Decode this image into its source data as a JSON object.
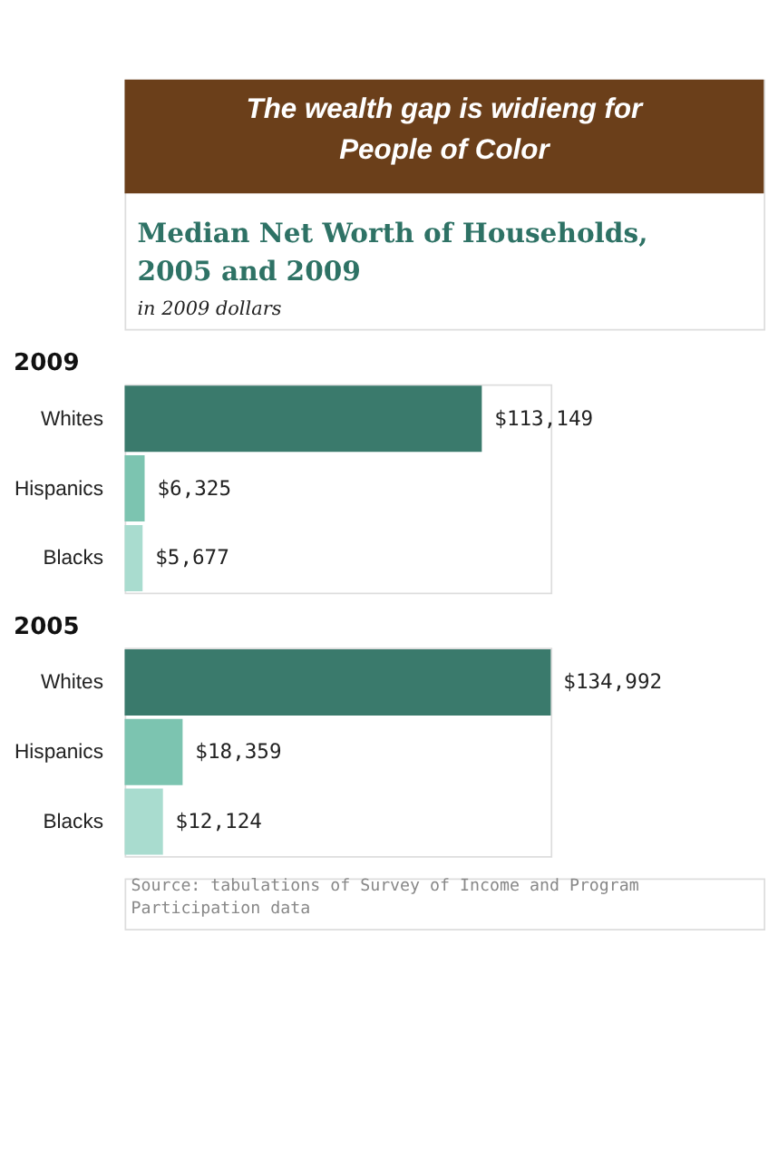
{
  "chart_data": [
    {
      "type": "other",
      "title": "The wealth gap is widieng for People of Color",
      "subtitle": "Median Net Worth of Households, 2005 and 2009",
      "annotations": [
        "in 2009 dollars"
      ]
    },
    {
      "type": "bar",
      "orientation": "horizontal",
      "title": "2009",
      "categories": [
        "Whites",
        "Hispanics",
        "Blacks"
      ],
      "values": [
        113149,
        6325,
        5677
      ],
      "colors": [
        "#3a7a6c",
        "#7cc4b0",
        "#a9dccf"
      ],
      "value_labels": [
        "$113,149",
        "$6,325",
        "$5,677"
      ]
    },
    {
      "type": "bar",
      "orientation": "horizontal",
      "title": "2005",
      "categories": [
        "Whites",
        "Hispanics",
        "Blacks"
      ],
      "values": [
        134992,
        18359,
        12124
      ],
      "colors": [
        "#3a7a6c",
        "#7cc4b0",
        "#a9dccf"
      ],
      "value_labels": [
        "$134,992",
        "$18,359",
        "$12,124"
      ],
      "annotations": [
        "Source: tabulations of Survey of Income and Program Participation data"
      ]
    }
  ]
}
